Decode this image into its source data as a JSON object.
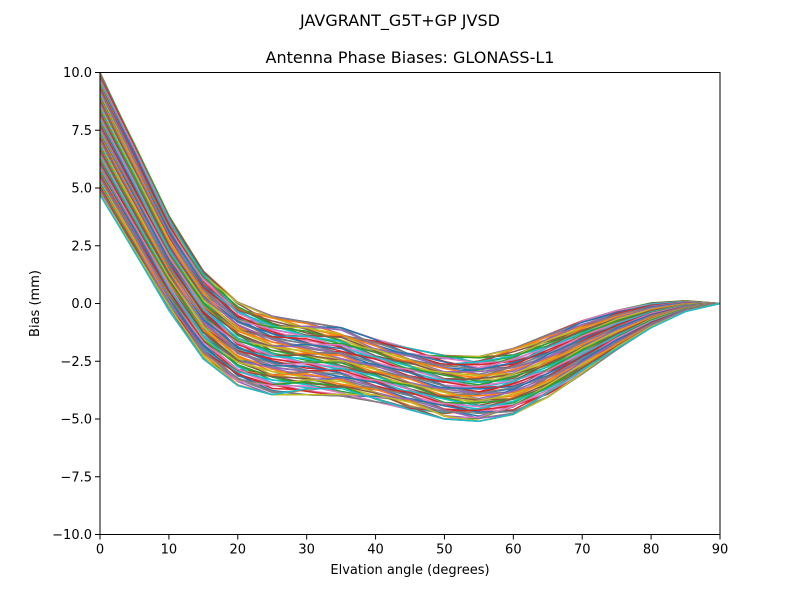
{
  "chart_data": {
    "type": "line",
    "suptitle": "JAVGRANT_G5T+GP JVSD",
    "title": "Antenna Phase Biases: GLONASS-L1",
    "xlabel": "Elvation angle (degrees)",
    "ylabel": "Bias (mm)",
    "xlim": [
      0,
      90
    ],
    "ylim": [
      -10,
      10
    ],
    "xticks": [
      0,
      10,
      20,
      30,
      40,
      50,
      60,
      70,
      80,
      90
    ],
    "yticks": [
      10.0,
      7.5,
      5.0,
      2.5,
      0.0,
      -2.5,
      -5.0,
      -7.5,
      -10.0
    ],
    "xtick_labels": [
      "0",
      "10",
      "20",
      "30",
      "40",
      "50",
      "60",
      "70",
      "80",
      "90"
    ],
    "ytick_labels": [
      "10.0",
      "7.5",
      "5.0",
      "2.5",
      "0.0",
      "−2.5",
      "−5.0",
      "−7.5",
      "−10.0"
    ],
    "grid": false,
    "x": [
      0,
      5,
      10,
      15,
      20,
      25,
      30,
      35,
      40,
      45,
      50,
      55,
      60,
      65,
      70,
      75,
      80,
      85,
      90
    ],
    "envelope_upper": [
      10.0,
      6.9,
      3.8,
      1.4,
      0.05,
      -0.55,
      -0.8,
      -1.05,
      -1.55,
      -1.95,
      -2.25,
      -2.3,
      -1.95,
      -1.35,
      -0.75,
      -0.3,
      0.02,
      0.12,
      0.0
    ],
    "envelope_lower": [
      4.7,
      2.2,
      -0.3,
      -2.4,
      -3.55,
      -3.95,
      -3.95,
      -4.0,
      -4.25,
      -4.6,
      -5.0,
      -5.1,
      -4.8,
      -4.05,
      -3.05,
      -2.0,
      -1.05,
      -0.35,
      0.0
    ],
    "series_count": 100,
    "palette": [
      "#1f77b4",
      "#ff7f0e",
      "#2ca02c",
      "#d62728",
      "#9467bd",
      "#8c564b",
      "#e377c2",
      "#7f7f7f",
      "#bcbd22",
      "#17becf"
    ]
  }
}
